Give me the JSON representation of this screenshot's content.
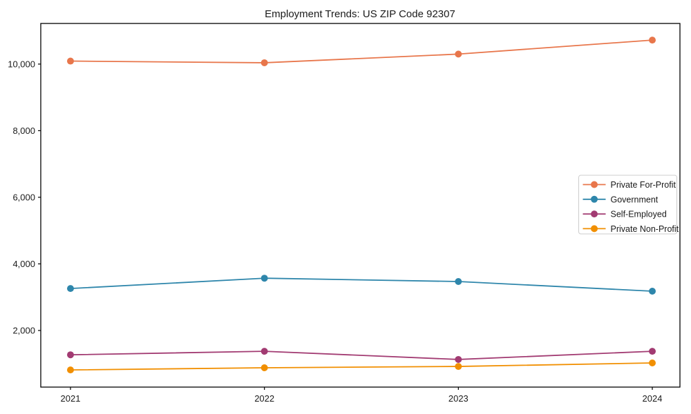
{
  "figure": {
    "title": "Employment Trends: US ZIP Code 92307"
  },
  "chart_data": {
    "type": "line",
    "title": "Employment Trends: US ZIP Code 92307",
    "xlabel": "",
    "ylabel": "",
    "categories": [
      "2021",
      "2022",
      "2023",
      "2024"
    ],
    "series": [
      {
        "name": "Private For-Profit",
        "color": "#E8764B",
        "values": [
          10090,
          10040,
          10300,
          10720
        ]
      },
      {
        "name": "Government",
        "color": "#2E86AB",
        "values": [
          3260,
          3570,
          3470,
          3180
        ]
      },
      {
        "name": "Self-Employed",
        "color": "#A23B72",
        "values": [
          1270,
          1375,
          1130,
          1375
        ]
      },
      {
        "name": "Private Non-Profit",
        "color": "#F18F01",
        "values": [
          815,
          880,
          920,
          1025
        ]
      }
    ],
    "yticks": [
      2000,
      4000,
      6000,
      8000,
      10000
    ],
    "ytick_labels": [
      "2,000",
      "4,000",
      "6,000",
      "8,000",
      "10,000"
    ],
    "ylim": [
      300,
      11220
    ],
    "grid": false,
    "marker": "circle",
    "legend_position": "center-right",
    "legend_labels": [
      "Private For-Profit",
      "Government",
      "Self-Employed",
      "Private Non-Profit"
    ],
    "axis_color": "#000000",
    "background_color": "#ffffff",
    "legend_border_color": "#cccccc"
  }
}
